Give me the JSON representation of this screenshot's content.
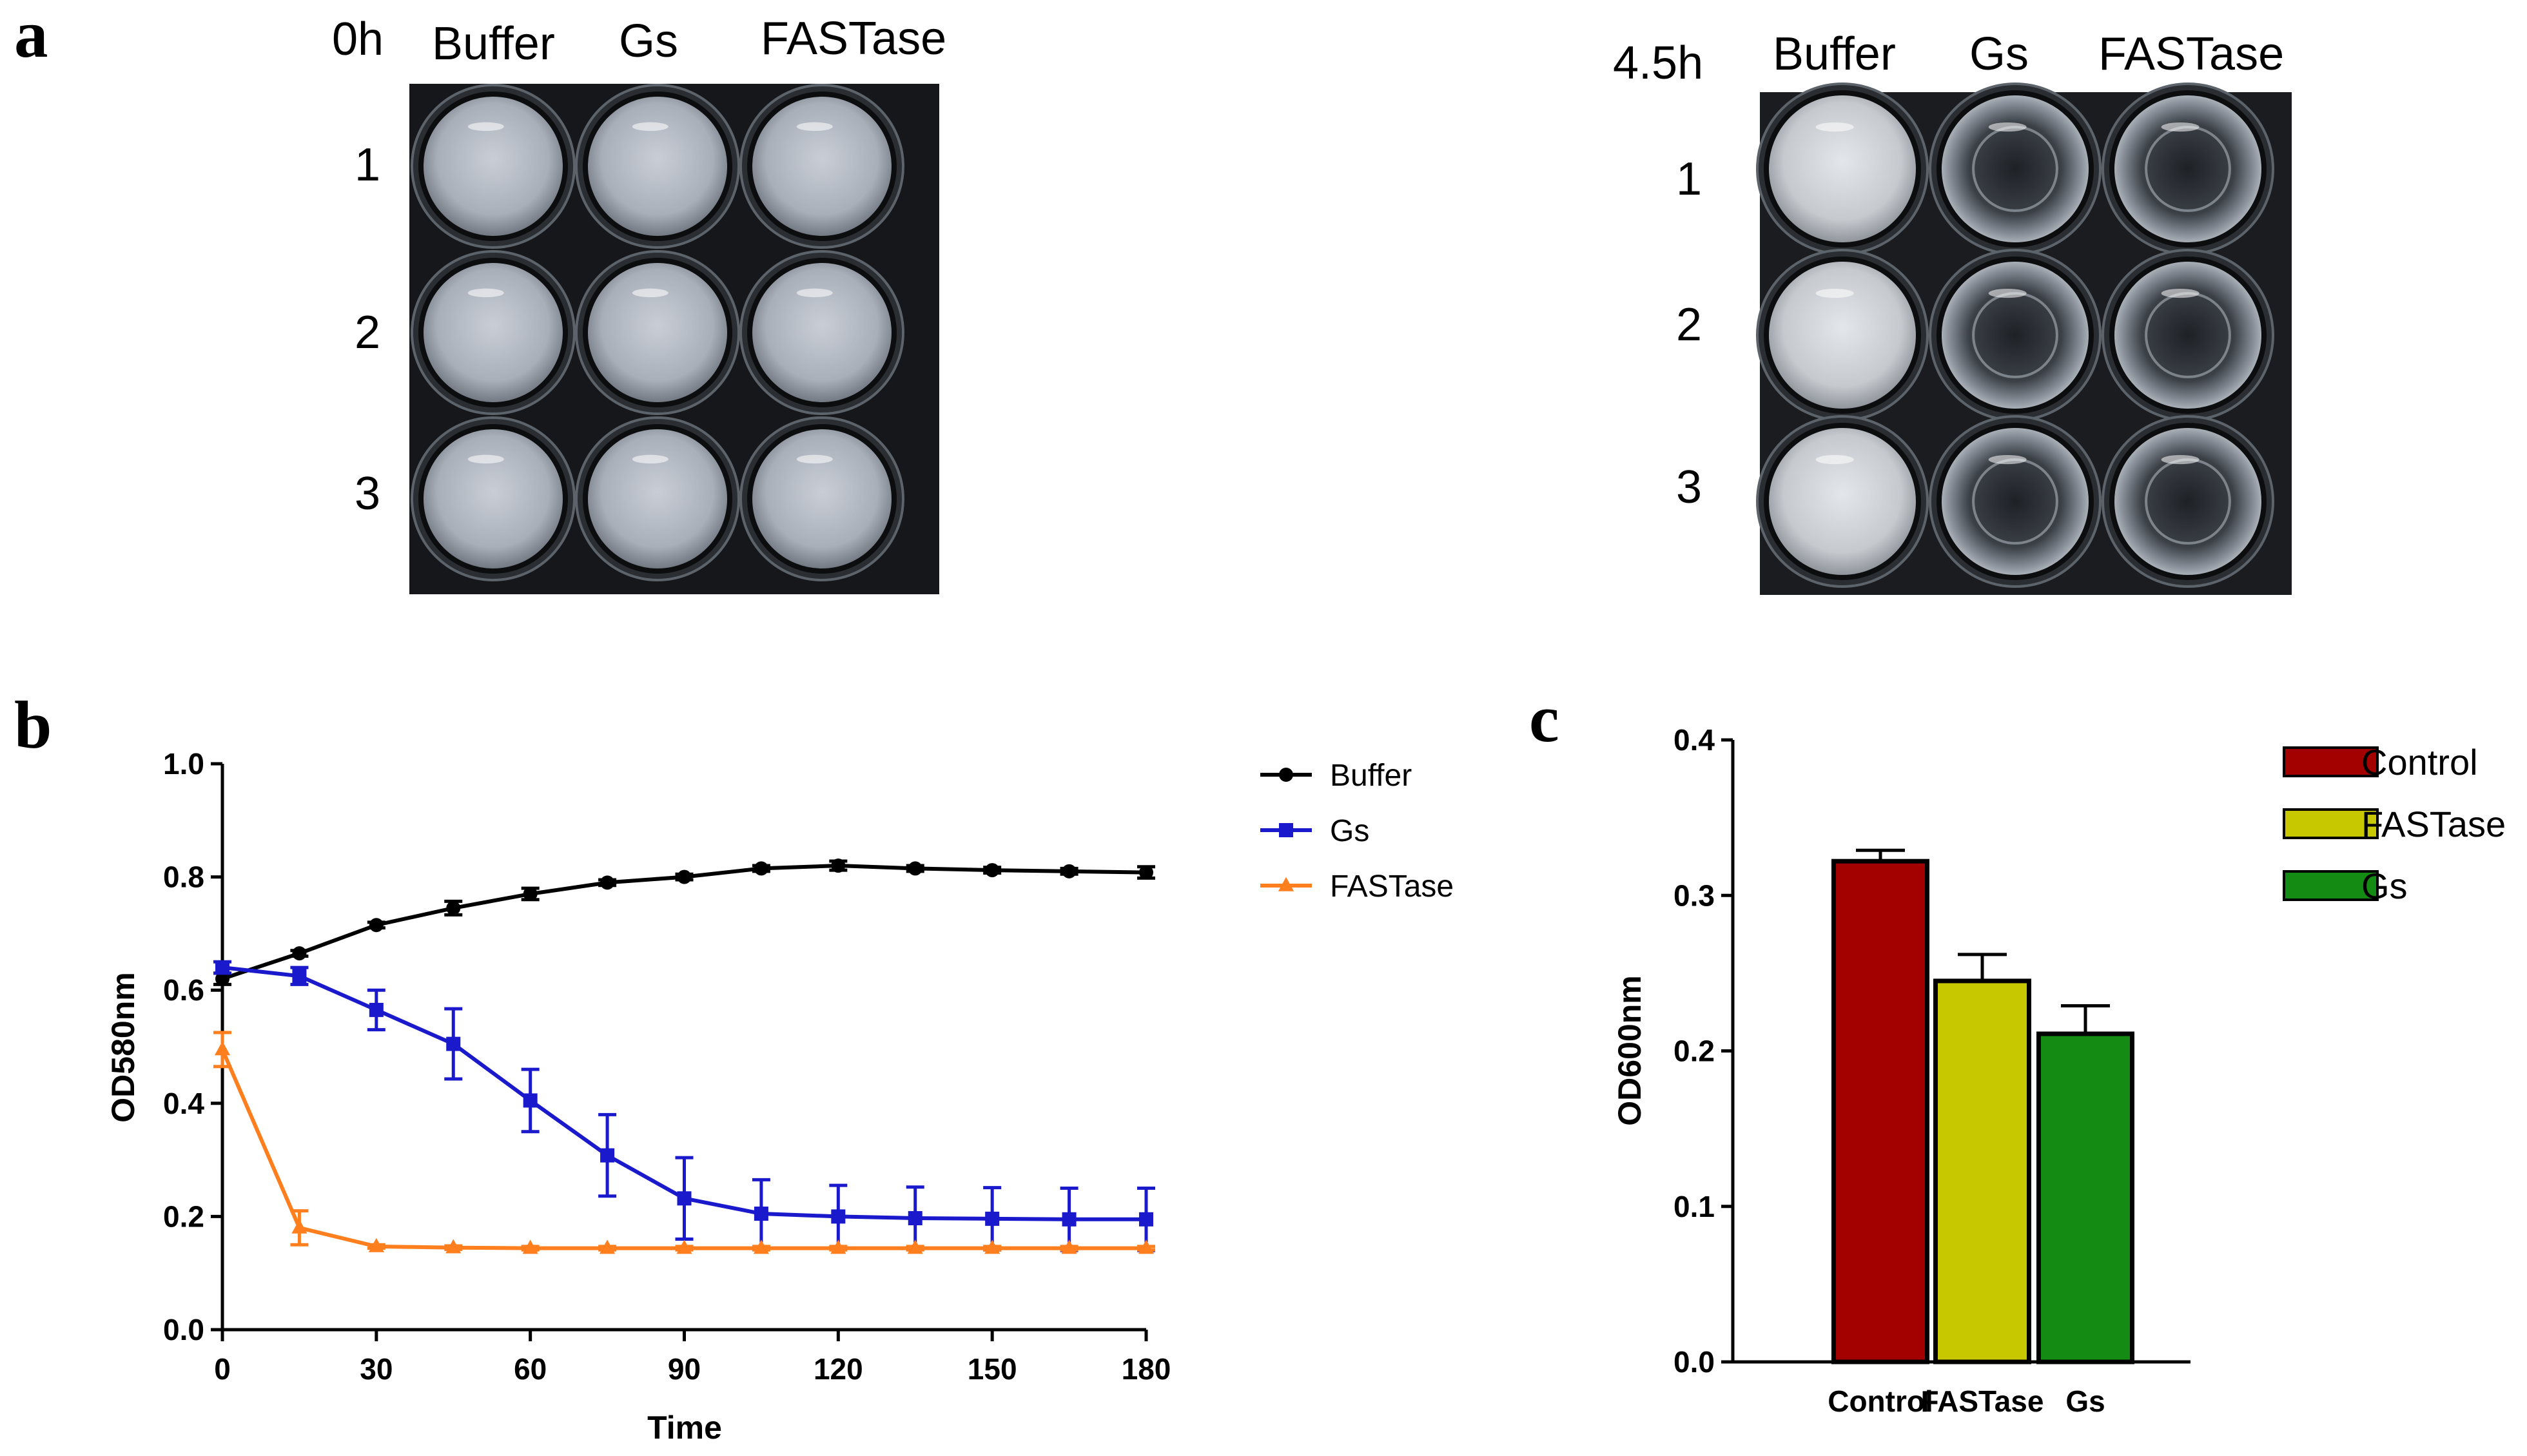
{
  "panels": {
    "a": "a",
    "b": "b",
    "c": "c"
  },
  "photos": [
    {
      "time_label": "0h",
      "columns": [
        "Buffer",
        "Gs",
        "FASTase"
      ],
      "rows": [
        "1",
        "2",
        "3"
      ],
      "wells": [
        [
          "turbid",
          "turbid",
          "turbid"
        ],
        [
          "turbid",
          "turbid",
          "turbid"
        ],
        [
          "turbid",
          "turbid",
          "turbid"
        ]
      ]
    },
    {
      "time_label": "4.5h",
      "columns": [
        "Buffer",
        "Gs",
        "FASTase"
      ],
      "rows": [
        "1",
        "2",
        "3"
      ],
      "wells": [
        [
          "turbid",
          "clear",
          "clear"
        ],
        [
          "turbid",
          "clear",
          "clear"
        ],
        [
          "turbid",
          "clear",
          "clear"
        ]
      ]
    }
  ],
  "colors": {
    "buffer": "#000000",
    "gs": "#1a1acc",
    "fastase": "#ff7f1f",
    "control_bar": "#a30000",
    "fastase_bar": "#c8c800",
    "gs_bar": "#148c14"
  },
  "chart_data": [
    {
      "type": "line",
      "panel": "b",
      "xlabel": "Time",
      "ylabel": "OD580nm",
      "xlim": [
        0,
        180
      ],
      "ylim": [
        0,
        1.0
      ],
      "xticks": [
        "0",
        "30",
        "60",
        "90",
        "120",
        "150",
        "180"
      ],
      "yticks": [
        "0.0",
        "0.2",
        "0.4",
        "0.6",
        "0.8",
        "1.0"
      ],
      "grid": false,
      "legend_position": "top-right",
      "x": [
        0,
        15,
        30,
        45,
        60,
        75,
        90,
        105,
        120,
        135,
        150,
        165,
        180
      ],
      "series": [
        {
          "name": "Buffer",
          "marker": "circle",
          "color": "#000000",
          "values": [
            0.62,
            0.665,
            0.715,
            0.745,
            0.77,
            0.79,
            0.8,
            0.815,
            0.82,
            0.815,
            0.812,
            0.81,
            0.808
          ],
          "errors": [
            0.01,
            0.005,
            0.005,
            0.012,
            0.01,
            0.005,
            0.005,
            0.005,
            0.008,
            0.005,
            0.005,
            0.005,
            0.01
          ]
        },
        {
          "name": "Gs",
          "marker": "square",
          "color": "#1a1acc",
          "values": [
            0.64,
            0.625,
            0.565,
            0.505,
            0.405,
            0.308,
            0.232,
            0.205,
            0.2,
            0.197,
            0.196,
            0.195,
            0.195
          ],
          "errors": [
            0.01,
            0.015,
            0.035,
            0.062,
            0.055,
            0.072,
            0.072,
            0.06,
            0.055,
            0.055,
            0.055,
            0.055,
            0.055
          ]
        },
        {
          "name": "FASTase",
          "marker": "triangle",
          "color": "#ff7f1f",
          "values": [
            0.495,
            0.18,
            0.147,
            0.145,
            0.144,
            0.144,
            0.144,
            0.144,
            0.144,
            0.144,
            0.144,
            0.144,
            0.144
          ],
          "errors": [
            0.03,
            0.03,
            0.003,
            0.003,
            0.003,
            0.003,
            0.003,
            0.003,
            0.003,
            0.003,
            0.003,
            0.003,
            0.003
          ]
        }
      ]
    },
    {
      "type": "bar",
      "panel": "c",
      "ylabel": "OD600nm",
      "ylim": [
        0,
        0.4
      ],
      "yticks": [
        "0.0",
        "0.1",
        "0.2",
        "0.3",
        "0.4"
      ],
      "grid": false,
      "legend_position": "top-right",
      "categories": [
        "Control",
        "FASTase",
        "Gs"
      ],
      "values": [
        0.322,
        0.245,
        0.211
      ],
      "errors": [
        0.007,
        0.017,
        0.018
      ],
      "colors": [
        "#a30000",
        "#c8c800",
        "#148c14"
      ],
      "legend": [
        "Control",
        "FASTase",
        "Gs"
      ]
    }
  ]
}
